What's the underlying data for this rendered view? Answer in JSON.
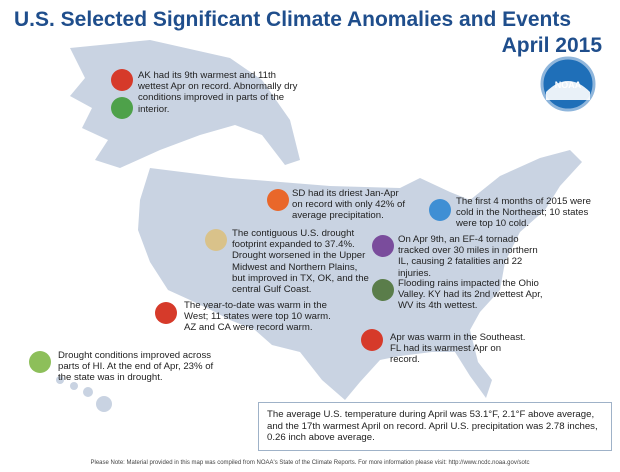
{
  "header": {
    "title": "U.S. Selected Significant Climate Anomalies and Events",
    "subtitle": "April 2015",
    "logo": "NOAA"
  },
  "events": [
    {
      "text": "AK had its 9th warmest and 11th wettest Apr on record. Abnormally dry conditions improved in parts of the interior."
    },
    {
      "text": "SD had its driest Jan-Apr on record with only 42% of average precipitation."
    },
    {
      "text": "The first 4 months of 2015 were cold in the Northeast; 10 states were top 10 cold."
    },
    {
      "text": "The contiguous U.S. drought footprint expanded to 37.4%. Drought worsened in the Upper Midwest and Northern Plains, but improved in TX, OK,  and the central Gulf Coast."
    },
    {
      "text": "On Apr 9th, an EF-4 tornado tracked over 30 miles in northern IL, causing 2 fatalities and 22 injuries."
    },
    {
      "text": "Flooding rains impacted the Ohio Valley. KY had its 2nd wettest Apr, WV its 4th wettest."
    },
    {
      "text": "The year-to-date was warm in the West; 11 states were top 10 warm. AZ and CA were record warm."
    },
    {
      "text": "Apr was warm in the Southeast. FL had its warmest Apr on record."
    },
    {
      "text": "Drought conditions improved across parts of HI. At the end of Apr, 23% of the state was in drought."
    }
  ],
  "summary": "The average U.S. temperature during April was 53.1°F, 2.1°F above average, and the 17th warmest April on record. April U.S. precipitation was 2.78 inches, 0.26 inch above average.",
  "footnote": "Please Note: Material provided in this map was compiled from NOAA's State of the Climate Reports. For more information please visit: http://www.ncdc.noaa.gov/sotc"
}
